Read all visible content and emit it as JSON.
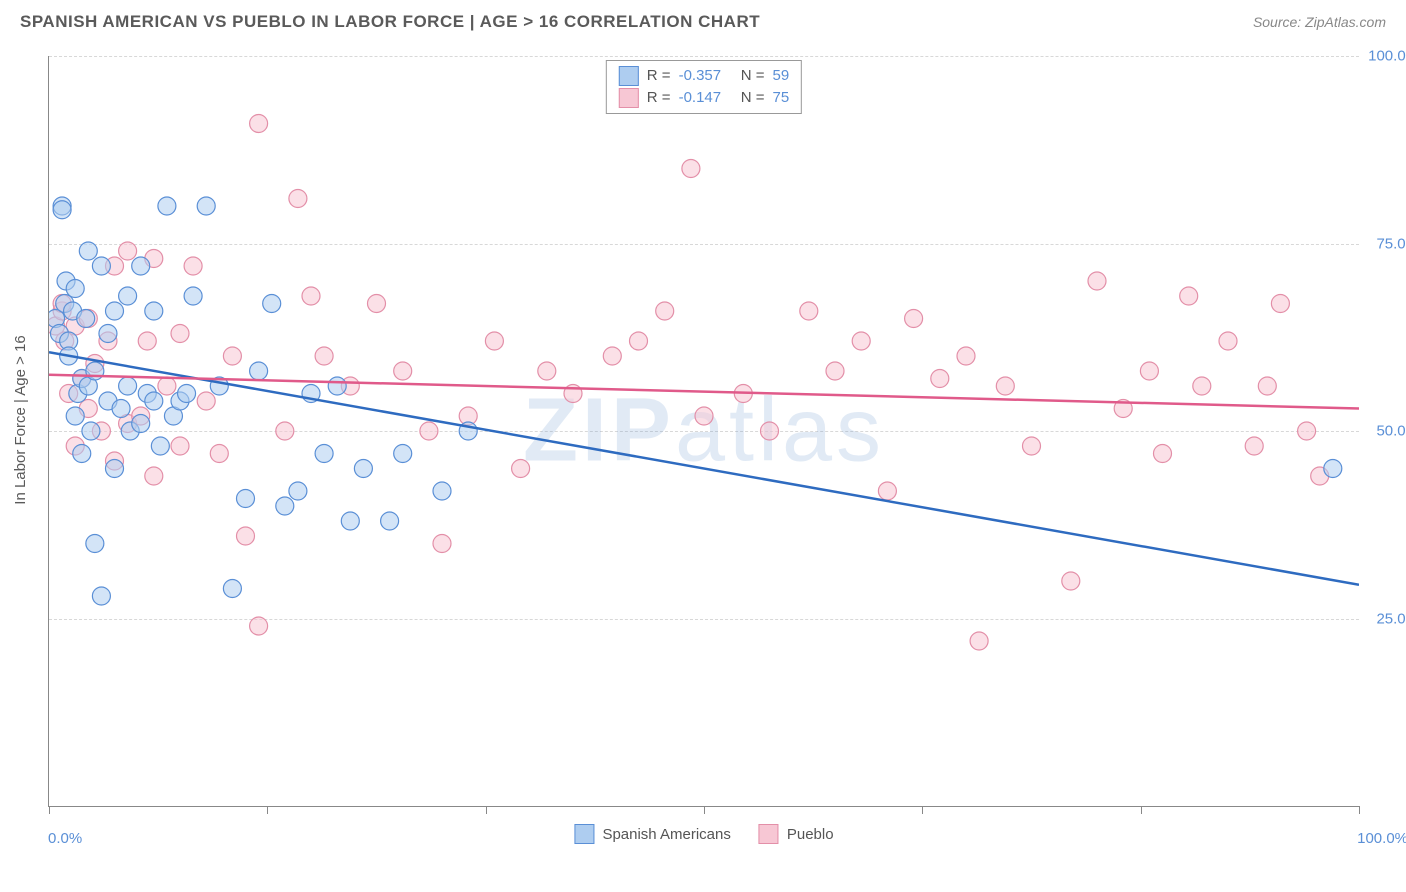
{
  "header": {
    "title": "SPANISH AMERICAN VS PUEBLO IN LABOR FORCE | AGE > 16 CORRELATION CHART",
    "source": "Source: ZipAtlas.com"
  },
  "watermark": {
    "part1": "ZIP",
    "part2": "atlas"
  },
  "chart": {
    "type": "scatter",
    "ylabel": "In Labor Force | Age > 16",
    "xlim": [
      0,
      100
    ],
    "ylim": [
      0,
      100
    ],
    "x_ticks": [
      0,
      16.67,
      33.33,
      50,
      66.67,
      83.33,
      100
    ],
    "y_grid": [
      25,
      50,
      75,
      100
    ],
    "y_tick_labels": [
      "25.0%",
      "50.0%",
      "75.0%",
      "100.0%"
    ],
    "x_min_label": "0.0%",
    "x_max_label": "100.0%",
    "background_color": "#ffffff",
    "grid_color": "#d8d8d8",
    "marker_radius": 9,
    "marker_opacity": 0.55,
    "series": [
      {
        "key": "spanish_americans",
        "label": "Spanish Americans",
        "fill": "#aecdf0",
        "stroke": "#5a8fd6",
        "line_color": "#2e6bc0",
        "R": "-0.357",
        "N": "59",
        "trend": {
          "x1": 0,
          "y1": 60.5,
          "x2": 100,
          "y2": 29.5
        },
        "points": [
          [
            0.5,
            65
          ],
          [
            0.8,
            63
          ],
          [
            1,
            80
          ],
          [
            1,
            79.5
          ],
          [
            1.2,
            67
          ],
          [
            1.3,
            70
          ],
          [
            1.5,
            62
          ],
          [
            1.5,
            60
          ],
          [
            1.8,
            66
          ],
          [
            2,
            69
          ],
          [
            2,
            52
          ],
          [
            2.2,
            55
          ],
          [
            2.5,
            57
          ],
          [
            2.5,
            47
          ],
          [
            2.8,
            65
          ],
          [
            3,
            74
          ],
          [
            3,
            56
          ],
          [
            3.2,
            50
          ],
          [
            3.5,
            58
          ],
          [
            3.5,
            35
          ],
          [
            4,
            28
          ],
          [
            4,
            72
          ],
          [
            4.5,
            54
          ],
          [
            4.5,
            63
          ],
          [
            5,
            45
          ],
          [
            5,
            66
          ],
          [
            5.5,
            53
          ],
          [
            6,
            68
          ],
          [
            6,
            56
          ],
          [
            6.2,
            50
          ],
          [
            7,
            51
          ],
          [
            7,
            72
          ],
          [
            7.5,
            55
          ],
          [
            8,
            54
          ],
          [
            8,
            66
          ],
          [
            8.5,
            48
          ],
          [
            9,
            80
          ],
          [
            9.5,
            52
          ],
          [
            10,
            54
          ],
          [
            10.5,
            55
          ],
          [
            11,
            68
          ],
          [
            12,
            80
          ],
          [
            13,
            56
          ],
          [
            14,
            29
          ],
          [
            15,
            41
          ],
          [
            16,
            58
          ],
          [
            17,
            67
          ],
          [
            18,
            40
          ],
          [
            19,
            42
          ],
          [
            20,
            55
          ],
          [
            21,
            47
          ],
          [
            22,
            56
          ],
          [
            23,
            38
          ],
          [
            24,
            45
          ],
          [
            26,
            38
          ],
          [
            27,
            47
          ],
          [
            30,
            42
          ],
          [
            32,
            50
          ],
          [
            98,
            45
          ]
        ]
      },
      {
        "key": "pueblo",
        "label": "Pueblo",
        "fill": "#f7c7d4",
        "stroke": "#e38fa8",
        "line_color": "#e05a8a",
        "R": "-0.147",
        "N": "75",
        "trend": {
          "x1": 0,
          "y1": 57.5,
          "x2": 100,
          "y2": 53.0
        },
        "points": [
          [
            0.5,
            64
          ],
          [
            1,
            66
          ],
          [
            1,
            67
          ],
          [
            1.2,
            62
          ],
          [
            1.5,
            55
          ],
          [
            2,
            64
          ],
          [
            2,
            48
          ],
          [
            2.5,
            57
          ],
          [
            3,
            53
          ],
          [
            3,
            65
          ],
          [
            3.5,
            59
          ],
          [
            4,
            50
          ],
          [
            4.5,
            62
          ],
          [
            5,
            46
          ],
          [
            5,
            72
          ],
          [
            6,
            74
          ],
          [
            6,
            51
          ],
          [
            7,
            52
          ],
          [
            7.5,
            62
          ],
          [
            8,
            73
          ],
          [
            8,
            44
          ],
          [
            9,
            56
          ],
          [
            10,
            48
          ],
          [
            10,
            63
          ],
          [
            11,
            72
          ],
          [
            12,
            54
          ],
          [
            13,
            47
          ],
          [
            14,
            60
          ],
          [
            15,
            36
          ],
          [
            16,
            91
          ],
          [
            16,
            24
          ],
          [
            18,
            50
          ],
          [
            19,
            81
          ],
          [
            20,
            68
          ],
          [
            21,
            60
          ],
          [
            23,
            56
          ],
          [
            25,
            67
          ],
          [
            27,
            58
          ],
          [
            29,
            50
          ],
          [
            30,
            35
          ],
          [
            32,
            52
          ],
          [
            34,
            62
          ],
          [
            36,
            45
          ],
          [
            38,
            58
          ],
          [
            40,
            55
          ],
          [
            43,
            60
          ],
          [
            45,
            62
          ],
          [
            47,
            66
          ],
          [
            49,
            85
          ],
          [
            50,
            52
          ],
          [
            53,
            55
          ],
          [
            55,
            50
          ],
          [
            58,
            66
          ],
          [
            60,
            58
          ],
          [
            62,
            62
          ],
          [
            64,
            42
          ],
          [
            66,
            65
          ],
          [
            68,
            57
          ],
          [
            70,
            60
          ],
          [
            71,
            22
          ],
          [
            73,
            56
          ],
          [
            75,
            48
          ],
          [
            78,
            30
          ],
          [
            80,
            70
          ],
          [
            82,
            53
          ],
          [
            84,
            58
          ],
          [
            85,
            47
          ],
          [
            87,
            68
          ],
          [
            88,
            56
          ],
          [
            90,
            62
          ],
          [
            92,
            48
          ],
          [
            93,
            56
          ],
          [
            94,
            67
          ],
          [
            96,
            50
          ],
          [
            97,
            44
          ]
        ]
      }
    ],
    "legend_bottom": [
      {
        "label": "Spanish Americans",
        "fill": "#aecdf0",
        "stroke": "#5a8fd6"
      },
      {
        "label": "Pueblo",
        "fill": "#f7c7d4",
        "stroke": "#e38fa8"
      }
    ]
  }
}
